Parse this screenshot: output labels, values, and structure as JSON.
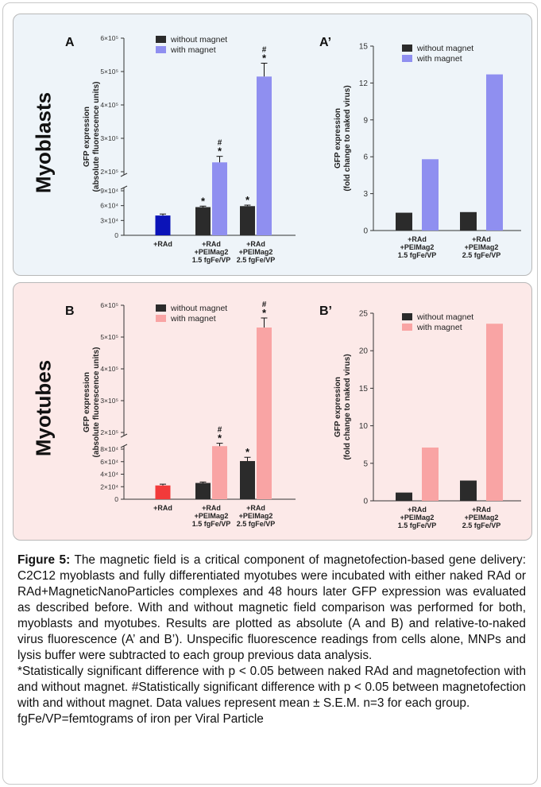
{
  "rows": [
    {
      "label": "Myoblasts"
    },
    {
      "label": "Myotubes"
    }
  ],
  "legend": {
    "without": "without magnet",
    "with": "with magnet"
  },
  "colors": {
    "without": "#2b2b2b",
    "with_blue": "#8f8ff0",
    "with_pink": "#f9a4a4",
    "rad_blue": "#0b13b8",
    "rad_red": "#f23a3a",
    "panel_blue": "#eef4f9",
    "panel_pink": "#fce9e8"
  },
  "chart_data": [
    {
      "type": "bar",
      "panel": "A",
      "ylabel": [
        "GFP expression",
        "(absolute fluorescence units)"
      ],
      "axis_break": true,
      "yticks_lower": [
        "0",
        "3×10⁴",
        "6×10⁴",
        "9×10⁴"
      ],
      "yticks_upper": [
        "2×10⁵",
        "3×10⁵",
        "4×10⁵",
        "5×10⁵",
        "6×10⁵"
      ],
      "categories": [
        [
          "+RAd"
        ],
        [
          "+RAd",
          "+PEIMag2",
          "1.5 fgFe/VP"
        ],
        [
          "+RAd",
          "+PEIMag2",
          "2.5 fgFe/VP"
        ]
      ],
      "bars": [
        {
          "group": 0,
          "series": "RAd",
          "value": 40000,
          "err": 3000
        },
        {
          "group": 1,
          "series": "without magnet",
          "value": 57000,
          "err": 2000,
          "sig": "*"
        },
        {
          "group": 1,
          "series": "with magnet",
          "value": 228000,
          "err": 18000,
          "sig": "*",
          "sig2": "#"
        },
        {
          "group": 2,
          "series": "without magnet",
          "value": 59000,
          "err": 2000,
          "sig": "*"
        },
        {
          "group": 2,
          "series": "with magnet",
          "value": 485000,
          "err": 40000,
          "sig": "*",
          "sig2": "#"
        }
      ]
    },
    {
      "type": "bar",
      "panel": "A’",
      "ylabel": [
        "GFP expression",
        "(fold change to naked virus)"
      ],
      "yticks": [
        "0",
        "3",
        "6",
        "9",
        "12",
        "15"
      ],
      "ylim": [
        0,
        15
      ],
      "categories": [
        [
          "+RAd",
          "+PEIMag2",
          "1.5 fgFe/VP"
        ],
        [
          "+RAd",
          "+PEIMag2",
          "2.5 fgFe/VP"
        ]
      ],
      "series": [
        {
          "name": "without magnet",
          "values": [
            1.45,
            1.5
          ]
        },
        {
          "name": "with magnet",
          "values": [
            5.8,
            12.7
          ]
        }
      ]
    },
    {
      "type": "bar",
      "panel": "B",
      "ylabel": [
        "GFP expression",
        "(absolute fluorescence units)"
      ],
      "axis_break": true,
      "yticks_lower": [
        "0",
        "2×10⁴",
        "4×10⁴",
        "6×10⁴",
        "8×10⁴"
      ],
      "yticks_upper": [
        "2×10⁵",
        "3×10⁵",
        "4×10⁵",
        "5×10⁵",
        "6×10⁵"
      ],
      "categories": [
        [
          "+RAd"
        ],
        [
          "+RAd",
          "+PEIMag2",
          "1.5 fgFe/VP"
        ],
        [
          "+RAd",
          "+PEIMag2",
          "2.5 fgFe/VP"
        ]
      ],
      "bars": [
        {
          "group": 0,
          "series": "RAd",
          "value": 22000,
          "err": 2000
        },
        {
          "group": 1,
          "series": "without magnet",
          "value": 26000,
          "err": 1500
        },
        {
          "group": 1,
          "series": "with magnet",
          "value": 157000,
          "err": 9000,
          "sig": "*",
          "sig2": "#"
        },
        {
          "group": 2,
          "series": "without magnet",
          "value": 61000,
          "err": 6000,
          "sig": "*"
        },
        {
          "group": 2,
          "series": "with magnet",
          "value": 530000,
          "err": 30000,
          "sig": "*",
          "sig2": "#"
        }
      ]
    },
    {
      "type": "bar",
      "panel": "B’",
      "ylabel": [
        "GFP expression",
        "(fold change to naked virus)"
      ],
      "yticks": [
        "0",
        "5",
        "10",
        "15",
        "20",
        "25"
      ],
      "ylim": [
        0,
        25
      ],
      "categories": [
        [
          "+RAd",
          "+PEIMag2",
          "1.5 fgFe/VP"
        ],
        [
          "+RAd",
          "+PEIMag2",
          "2.5 fgFe/VP"
        ]
      ],
      "series": [
        {
          "name": "without magnet",
          "values": [
            1.1,
            2.7
          ]
        },
        {
          "name": "with magnet",
          "values": [
            7.1,
            23.6
          ]
        }
      ]
    }
  ],
  "caption": {
    "fig_label": "Figure 5:",
    "text": " The magnetic field is a critical component of magnetofection-based gene delivery: C2C12 myoblasts and fully differentiated myotubes were incubated with either naked RAd or RAd+MagneticNanoParticles complexes and 48 hours later GFP expression was evaluated as described before. With and without magnetic field comparison was performed for both, myoblasts and myotubes. Results are plotted as absolute (A and B) and relative-to-naked virus fluorescence (A’ and B’). Unspecific fluorescence readings from cells alone, MNPs and lysis buffer were subtracted to each group previous data analysis.",
    "note1": "*Statistically significant difference with p < 0.05 between naked RAd and magnetofection with and without magnet. #Statistically significant difference with p < 0.05 between magnetofection with and without magnet. Data values represent mean ± S.E.M. n=3 for each group.",
    "note2": "fgFe/VP=femtograms of iron per Viral Particle"
  }
}
